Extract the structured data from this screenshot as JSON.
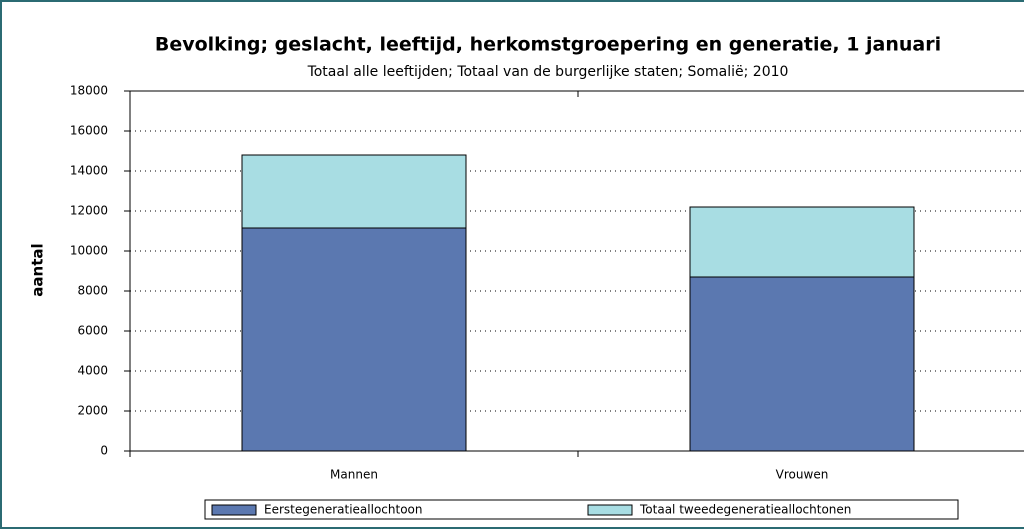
{
  "chart_data": {
    "type": "bar",
    "stacked": true,
    "title": "Bevolking; geslacht, leeftijd, herkomstgroepering en generatie, 1 januari",
    "subtitle": "Totaal alle leeftijden; Totaal van de burgerlijke staten; Somalië; 2010",
    "y_label": "aantal",
    "categories": [
      "Mannen",
      "Vrouwen"
    ],
    "series": [
      {
        "name": "Eerstegeneratieallochtoon",
        "color": "#5b78b0",
        "values": [
          11150,
          8700
        ]
      },
      {
        "name": "Totaal tweedegeneratieallochtonen",
        "color": "#a8dde3",
        "values": [
          3650,
          3500
        ]
      }
    ],
    "ylim": [
      0,
      18000
    ],
    "yticks": [
      0,
      2000,
      4000,
      6000,
      8000,
      10000,
      12000,
      14000,
      16000,
      18000
    ],
    "grid": true,
    "legend": "bottom"
  }
}
